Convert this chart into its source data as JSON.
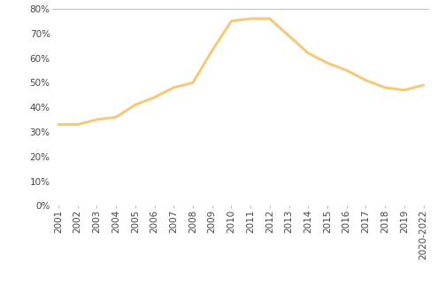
{
  "x_labels": [
    "2001",
    "2002",
    "2003",
    "2004",
    "2005",
    "2006",
    "2007",
    "2008",
    "2009",
    "2010",
    "2011",
    "2012",
    "2013",
    "2014",
    "2015",
    "2016",
    "2017",
    "2018",
    "2019",
    "2020-2022"
  ],
  "y_values": [
    0.33,
    0.33,
    0.35,
    0.36,
    0.41,
    0.44,
    0.48,
    0.5,
    0.63,
    0.75,
    0.76,
    0.76,
    0.69,
    0.62,
    0.58,
    0.55,
    0.51,
    0.48,
    0.47,
    0.49
  ],
  "line_color": "#f5c97a",
  "line_width": 2.2,
  "ylim": [
    0,
    0.8
  ],
  "yticks": [
    0,
    0.1,
    0.2,
    0.3,
    0.4,
    0.5,
    0.6,
    0.7,
    0.8
  ],
  "background_color": "#ffffff",
  "grid_color": "#bbbbbb",
  "tick_label_color": "#444444",
  "tick_label_fontsize": 7.5,
  "figsize": [
    4.95,
    3.32
  ],
  "dpi": 100
}
